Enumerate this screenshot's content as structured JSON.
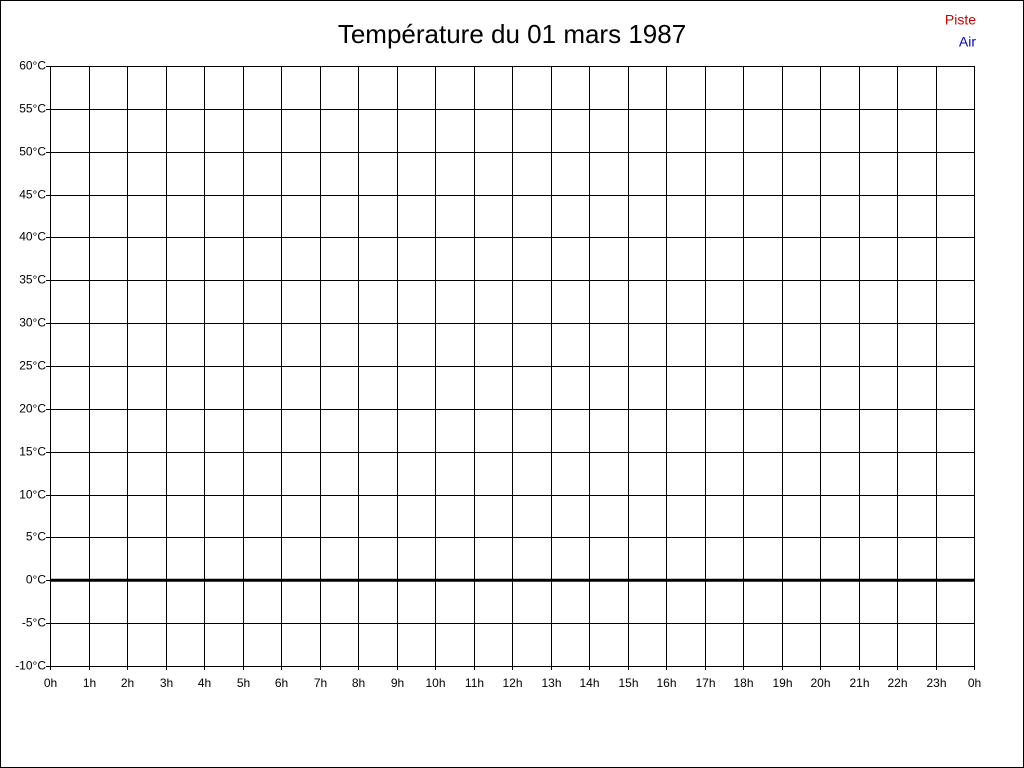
{
  "chart_data": {
    "type": "line",
    "title": "Température du 01 mars 1987",
    "x": [],
    "series": [
      {
        "name": "Piste",
        "color": "#cc0000",
        "values": []
      },
      {
        "name": "Air",
        "color": "#0000cc",
        "values": []
      }
    ],
    "xlim": [
      0,
      24
    ],
    "xticks": [
      {
        "value": 0,
        "label": "0h"
      },
      {
        "value": 1,
        "label": "1h"
      },
      {
        "value": 2,
        "label": "2h"
      },
      {
        "value": 3,
        "label": "3h"
      },
      {
        "value": 4,
        "label": "4h"
      },
      {
        "value": 5,
        "label": "5h"
      },
      {
        "value": 6,
        "label": "6h"
      },
      {
        "value": 7,
        "label": "7h"
      },
      {
        "value": 8,
        "label": "8h"
      },
      {
        "value": 9,
        "label": "9h"
      },
      {
        "value": 10,
        "label": "10h"
      },
      {
        "value": 11,
        "label": "11h"
      },
      {
        "value": 12,
        "label": "12h"
      },
      {
        "value": 13,
        "label": "13h"
      },
      {
        "value": 14,
        "label": "14h"
      },
      {
        "value": 15,
        "label": "15h"
      },
      {
        "value": 16,
        "label": "16h"
      },
      {
        "value": 17,
        "label": "17h"
      },
      {
        "value": 18,
        "label": "18h"
      },
      {
        "value": 19,
        "label": "19h"
      },
      {
        "value": 20,
        "label": "20h"
      },
      {
        "value": 21,
        "label": "21h"
      },
      {
        "value": 22,
        "label": "22h"
      },
      {
        "value": 23,
        "label": "23h"
      },
      {
        "value": 24,
        "label": "0h"
      }
    ],
    "ylim": [
      -10,
      60
    ],
    "yticks": [
      {
        "value": -10,
        "label": "-10°C"
      },
      {
        "value": -5,
        "label": "-5°C"
      },
      {
        "value": 0,
        "label": "0°C"
      },
      {
        "value": 5,
        "label": "5°C"
      },
      {
        "value": 10,
        "label": "10°C"
      },
      {
        "value": 15,
        "label": "15°C"
      },
      {
        "value": 20,
        "label": "20°C"
      },
      {
        "value": 25,
        "label": "25°C"
      },
      {
        "value": 30,
        "label": "30°C"
      },
      {
        "value": 35,
        "label": "35°C"
      },
      {
        "value": 40,
        "label": "40°C"
      },
      {
        "value": 45,
        "label": "45°C"
      },
      {
        "value": 50,
        "label": "50°C"
      },
      {
        "value": 55,
        "label": "55°C"
      },
      {
        "value": 60,
        "label": "60°C"
      }
    ],
    "grid": true,
    "legend": "top-right"
  }
}
